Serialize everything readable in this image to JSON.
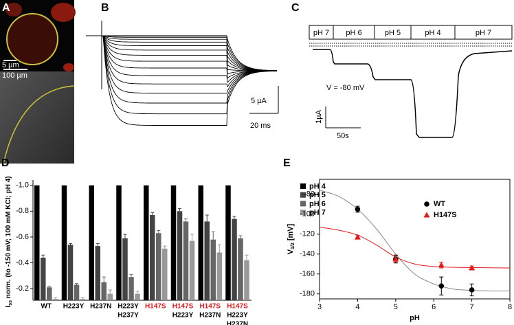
{
  "panels": {
    "A": {
      "label": "A",
      "scale_bar_small": "5 µm",
      "scale_bar_large": "100 µm"
    },
    "B": {
      "label": "B",
      "scale_current": "5 µA",
      "scale_time": "20 ms"
    },
    "C": {
      "label": "C",
      "solutions": [
        "pH 7",
        "pH 6",
        "pH 5",
        "pH 4",
        "pH 7"
      ],
      "voltage": "V = -80 mV",
      "scale_current": "1µA",
      "scale_time": "50s"
    }
  },
  "chart_data": [
    {
      "type": "bar",
      "panel_label": "D",
      "ylabel": [
        "I",
        "ss",
        " norm. (to -150 mV; 100 mM KCl; pH 4)"
      ],
      "categories": [
        [
          "WT"
        ],
        [
          "H223Y"
        ],
        [
          "H237N"
        ],
        [
          "H223Y",
          "H237Y"
        ],
        [
          "H147S"
        ],
        [
          "H147S",
          "H223Y"
        ],
        [
          "H147S",
          "H237N"
        ],
        [
          "H147S",
          "H223Y",
          "H237N"
        ]
      ],
      "label_colors": [
        [
          "#000000"
        ],
        [
          "#000000"
        ],
        [
          "#000000"
        ],
        [
          "#000000",
          "#000000"
        ],
        [
          "#e31a1c"
        ],
        [
          "#e31a1c",
          "#000000"
        ],
        [
          "#e31a1c",
          "#000000"
        ],
        [
          "#e31a1c",
          "#000000",
          "#000000"
        ]
      ],
      "series": [
        {
          "name": "pH 4",
          "color": "#000000",
          "values": [
            -1.0,
            -1.0,
            -1.0,
            -1.0,
            -1.0,
            -1.0,
            -1.0,
            -1.0
          ]
        },
        {
          "name": "pH 5",
          "color": "#444444",
          "values": [
            -0.44,
            -0.54,
            -0.53,
            -0.59,
            -0.77,
            -0.8,
            -0.72,
            -0.74
          ],
          "errors": [
            0.02,
            0.01,
            0.02,
            0.03,
            0.02,
            0.02,
            0.05,
            0.02
          ]
        },
        {
          "name": "pH 6",
          "color": "#666666",
          "values": [
            -0.21,
            -0.23,
            -0.25,
            -0.29,
            -0.63,
            -0.72,
            -0.58,
            -0.59
          ],
          "errors": [
            0.01,
            0.01,
            0.04,
            0.02,
            0.02,
            0.02,
            0.06,
            0.02
          ]
        },
        {
          "name": "pH 7",
          "color": "#999999",
          "values": [
            -0.12,
            -0.12,
            -0.16,
            -0.16,
            -0.51,
            -0.57,
            -0.48,
            -0.42
          ],
          "errors": [
            0.01,
            0.01,
            0.03,
            0.02,
            0.02,
            0.05,
            0.06,
            0.04
          ]
        }
      ],
      "ylim": [
        -0.11,
        -1.02
      ],
      "yticks": [
        {
          "value": -1.0,
          "label": "-1.0"
        },
        -0.8,
        -0.6,
        -0.4,
        -0.2
      ],
      "legend": "right"
    },
    {
      "type": "scatter",
      "panel_label": "E",
      "xlabel": "pH",
      "ylabel": [
        "V",
        "1/2",
        " [mV]"
      ],
      "series": [
        {
          "name": "WT",
          "color": "#000000",
          "marker": "circle",
          "x": [
            4,
            5,
            6.2,
            7
          ],
          "values": [
            -95,
            -145,
            -172,
            -176
          ],
          "errors": [
            3,
            4,
            9,
            6
          ]
        },
        {
          "name": "H147S",
          "color": "#e31a1c",
          "marker": "triangle",
          "x": [
            4,
            5,
            6.2,
            7
          ],
          "values": [
            -123,
            -145,
            -151,
            -154
          ],
          "errors": [
            2,
            3,
            3,
            2
          ]
        }
      ],
      "fits": [
        {
          "color": "#888888",
          "x": [
            3,
            3.5,
            4,
            4.5,
            5,
            5.5,
            6,
            6.5,
            7,
            7.5,
            8
          ],
          "values": [
            -76,
            -82,
            -95,
            -115,
            -140,
            -160,
            -170,
            -175,
            -176.5,
            -177,
            -177
          ]
        },
        {
          "color": "#e31a1c",
          "x": [
            3,
            3.5,
            4,
            4.5,
            5,
            5.5,
            6,
            6.5,
            7,
            7.5,
            8
          ],
          "values": [
            -113,
            -116,
            -121,
            -131,
            -143,
            -150,
            -152.5,
            -153.3,
            -153.6,
            -153.8,
            -154
          ]
        }
      ],
      "xlim": [
        3,
        8
      ],
      "xticks": [
        3,
        4,
        5,
        6,
        7,
        8
      ],
      "ylim": [
        -185,
        -65
      ],
      "yticks": [
        -80,
        -100,
        -120,
        -140,
        -160,
        -180
      ],
      "legend": "upper right"
    }
  ]
}
